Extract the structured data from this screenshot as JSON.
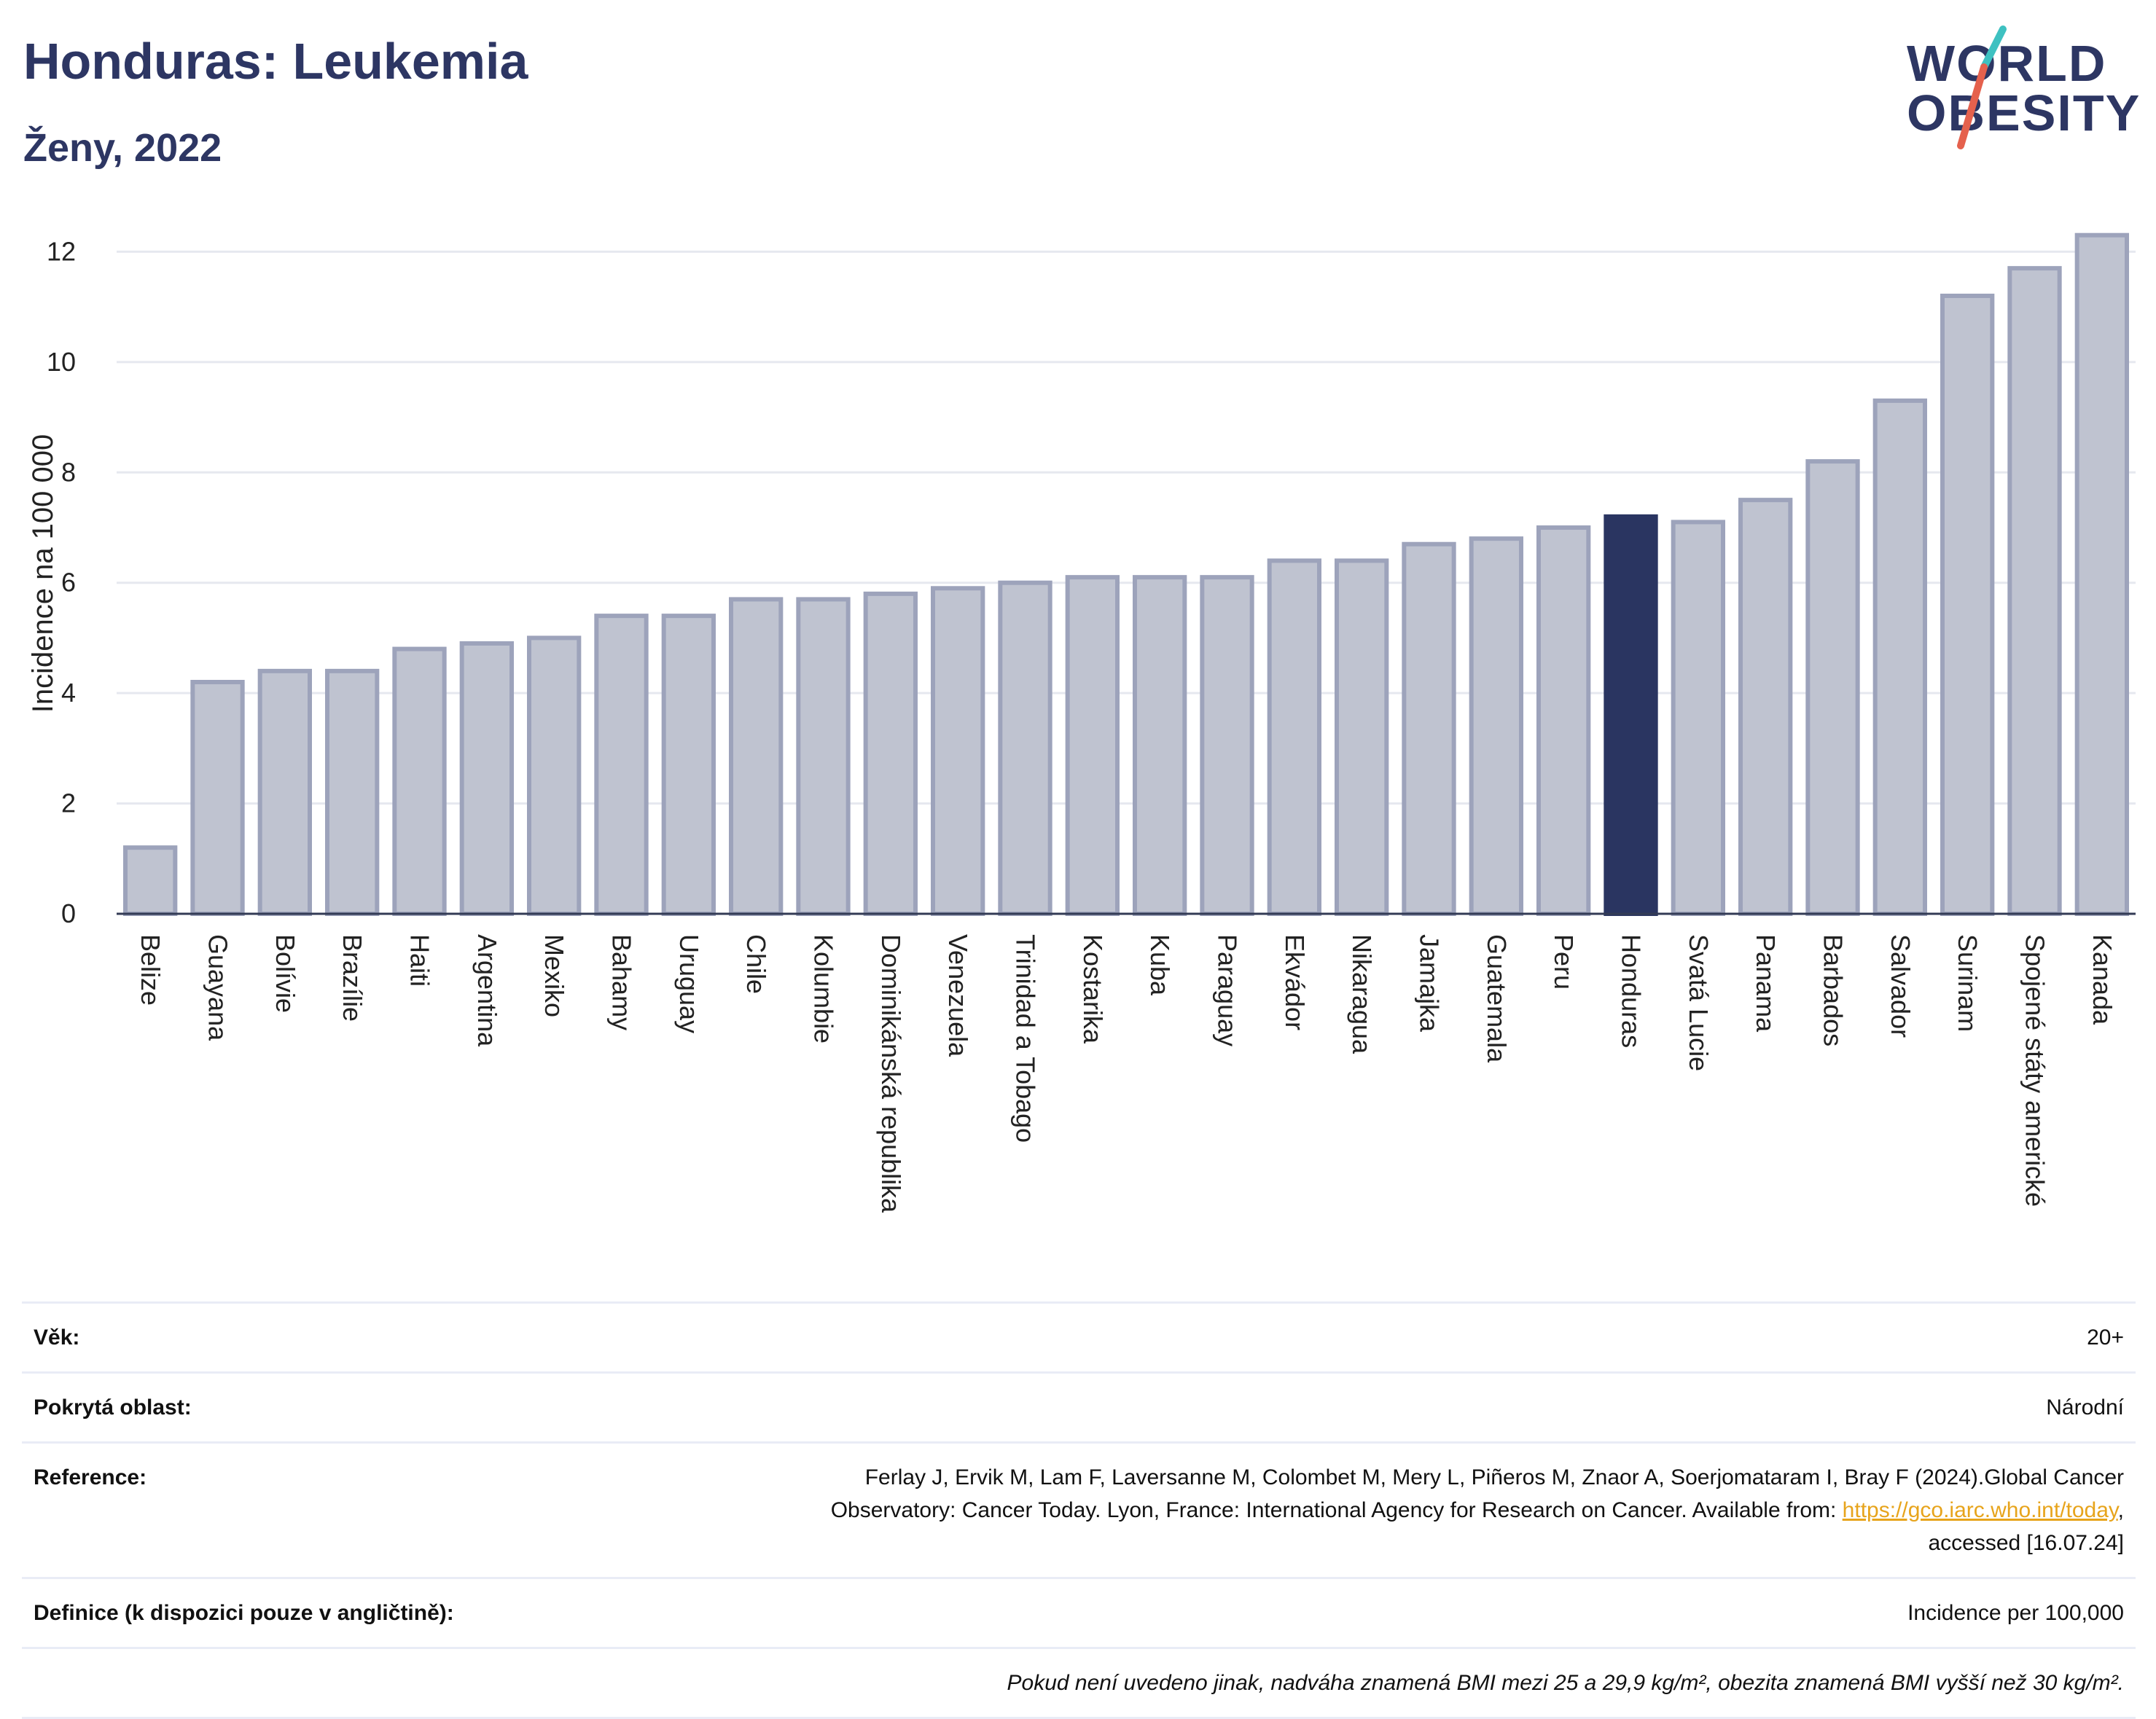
{
  "title": "Honduras: Leukemia",
  "subtitle": "Ženy, 2022",
  "logo": {
    "line1": "WORLD",
    "line2": "OBESITY",
    "accent_colors": [
      "#3ec1c1",
      "#e5614d"
    ]
  },
  "colors": {
    "bar": "#bfc3d0",
    "bar_border": "#9da3bb",
    "highlight": "#2a3561",
    "axis_text": "#222222",
    "grid": "#e6e8ef"
  },
  "chart_data": {
    "type": "bar",
    "ylabel": "Incidence na 100 000",
    "ylim": [
      0,
      12.6
    ],
    "yticks": [
      0,
      2,
      4,
      6,
      8,
      10,
      12
    ],
    "grid": true,
    "highlight": "Honduras",
    "categories": [
      "Belize",
      "Guayana",
      "Bolívie",
      "Brazílie",
      "Haiti",
      "Argentina",
      "Mexiko",
      "Bahamy",
      "Uruguay",
      "Chile",
      "Kolumbie",
      "Dominikánská republika",
      "Venezuela",
      "Trinidad a Tobago",
      "Kostarika",
      "Kuba",
      "Paraguay",
      "Ekvádor",
      "Nikaragua",
      "Jamajka",
      "Guatemala",
      "Peru",
      "Honduras",
      "Svatá Lucie",
      "Panama",
      "Barbados",
      "Salvador",
      "Surinam",
      "Spojené státy americké",
      "Kanada"
    ],
    "values": [
      1.2,
      4.2,
      4.4,
      4.4,
      4.8,
      4.9,
      5.0,
      5.4,
      5.4,
      5.7,
      5.7,
      5.8,
      5.9,
      6.0,
      6.1,
      6.1,
      6.1,
      6.4,
      6.4,
      6.7,
      6.8,
      7.0,
      7.2,
      7.1,
      7.5,
      8.2,
      9.3,
      11.2,
      11.7,
      12.3
    ]
  },
  "info": {
    "age": {
      "label": "Věk:",
      "value": "20+"
    },
    "area": {
      "label": "Pokrytá oblast:",
      "value": "Národní"
    },
    "reference": {
      "label": "Reference:",
      "line1": "Ferlay J, Ervik M, Lam F, Laversanne M, Colombet M, Mery L, Piñeros M, Znaor A, Soerjomataram I, Bray F (2024).Global Cancer",
      "line2": "Observatory: Cancer Today. Lyon, France: International Agency for Research on Cancer. Available from:",
      "link": "https://gco.iarc.who.int/today",
      "line3": "accessed [16.07.24]"
    },
    "definition": {
      "label": "Definice (k dispozici pouze v angličtině):",
      "value": "Incidence per 100,000"
    },
    "note": "Pokud není uvedeno jinak, nadváha znamená BMI mezi 25 a 29,9 kg/m², obezita znamená BMI vyšší než 30 kg/m²."
  }
}
